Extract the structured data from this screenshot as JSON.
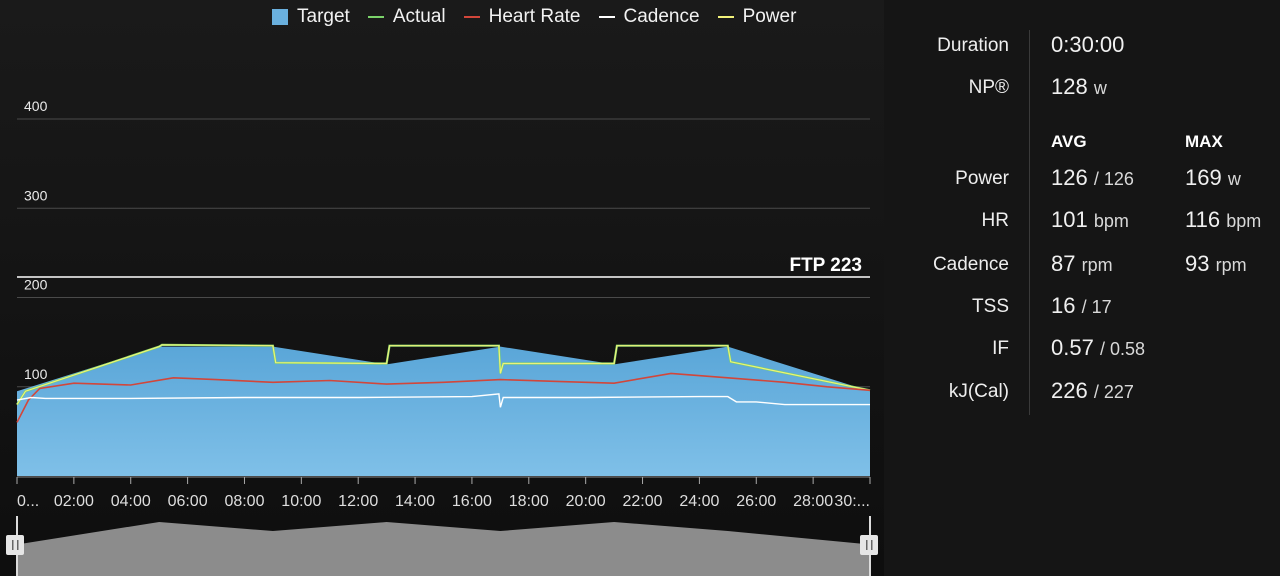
{
  "legend": [
    {
      "label": "Target",
      "color": "#6ab0de",
      "kind": "square"
    },
    {
      "label": "Actual",
      "color": "#7bd36a",
      "kind": "line"
    },
    {
      "label": "Heart Rate",
      "color": "#d2463a",
      "kind": "line"
    },
    {
      "label": "Cadence",
      "color": "#ffffff",
      "kind": "line"
    },
    {
      "label": "Power",
      "color": "#f2f27a",
      "kind": "line"
    }
  ],
  "ftp": {
    "label": "FTP 223",
    "value": 223
  },
  "chart_data": {
    "type": "area",
    "y_ticks": [
      100,
      200,
      300,
      400
    ],
    "ylim": [
      0,
      420
    ],
    "xlim_minutes": [
      0,
      30
    ],
    "x_tick_labels": [
      "0...",
      "02:00",
      "04:00",
      "06:00",
      "08:00",
      "10:00",
      "12:00",
      "14:00",
      "16:00",
      "18:00",
      "20:00",
      "22:00",
      "24:00",
      "26:00",
      "28:00",
      "30:..."
    ],
    "target": {
      "x_minutes": [
        0,
        5,
        5,
        9,
        9,
        13,
        13,
        17,
        17,
        21,
        21,
        25,
        25,
        30
      ],
      "y": [
        95,
        145,
        145,
        145,
        145,
        125,
        125,
        145,
        145,
        125,
        125,
        145,
        145,
        95
      ]
    },
    "actual": {
      "x_minutes": [
        0,
        0.3,
        5,
        5.1,
        9,
        9.1,
        13,
        13.1,
        16.95,
        17,
        17.1,
        21,
        21.1,
        25,
        25.1,
        30
      ],
      "y": [
        80,
        95,
        145,
        147,
        146,
        127,
        126,
        146,
        146,
        115,
        126,
        126,
        146,
        146,
        128,
        96
      ]
    },
    "heart_rate": {
      "x_minutes": [
        0,
        0.4,
        0.8,
        2,
        4,
        5.5,
        7,
        9,
        11,
        13,
        15,
        17,
        19,
        21,
        23,
        25,
        27,
        28.5,
        30
      ],
      "y": [
        60,
        85,
        98,
        104,
        102,
        110,
        108,
        105,
        107,
        103,
        105,
        108,
        106,
        104,
        115,
        110,
        105,
        100,
        96
      ]
    },
    "cadence": {
      "x_minutes": [
        0,
        0.5,
        1,
        4,
        8,
        12,
        16,
        16.95,
        17,
        17.1,
        20,
        24,
        25,
        25.3,
        26,
        27,
        30
      ],
      "y": [
        85,
        88,
        87,
        87,
        88,
        88,
        89,
        92,
        77,
        88,
        88,
        89,
        89,
        83,
        83,
        80,
        80
      ]
    }
  },
  "scrubber": {
    "x_minutes": [
      0,
      5,
      5,
      9,
      9,
      13,
      13,
      17,
      17,
      21,
      21,
      25,
      25,
      30
    ],
    "y": [
      95,
      145,
      145,
      125,
      125,
      145,
      145,
      125,
      125,
      145,
      145,
      125,
      125,
      95
    ]
  },
  "stats": {
    "duration": {
      "label": "Duration",
      "value": "0:30:00"
    },
    "np": {
      "label": "NP®",
      "value": "128",
      "unit": "w"
    },
    "avg_header": "AVG",
    "max_header": "MAX",
    "power": {
      "label": "Power",
      "avg": "126",
      "avg_target": "/ 126",
      "max": "169",
      "unit": "w"
    },
    "hr": {
      "label": "HR",
      "avg": "101",
      "max": "116",
      "unit": "bpm"
    },
    "cadence": {
      "label": "Cadence",
      "avg": "87",
      "max": "93",
      "unit": "rpm"
    },
    "tss": {
      "label": "TSS",
      "value": "16",
      "target": "/ 17"
    },
    "if": {
      "label": "IF",
      "value": "0.57",
      "target": "/ 0.58"
    },
    "kj": {
      "label": "kJ(Cal)",
      "value": "226",
      "target": "/ 227"
    }
  }
}
